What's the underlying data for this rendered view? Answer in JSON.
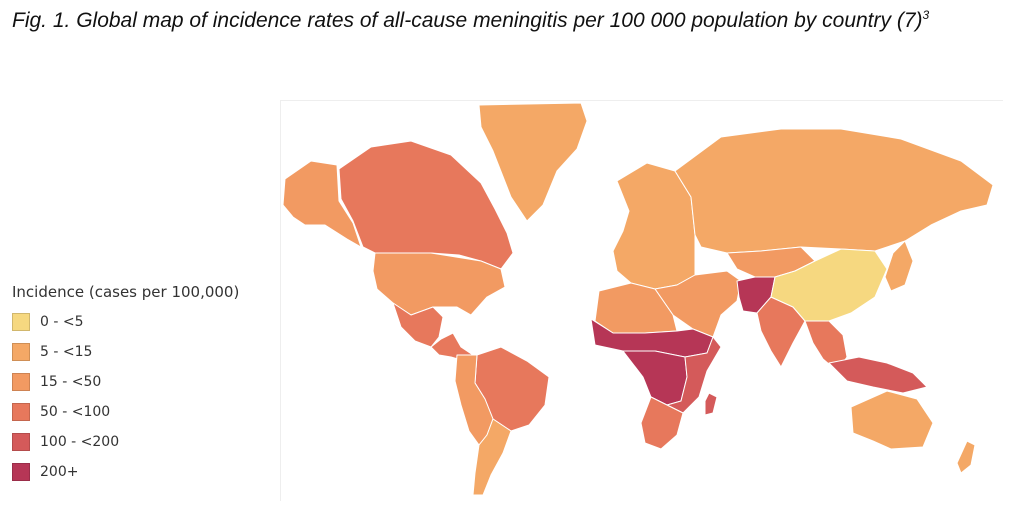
{
  "caption": {
    "text": "Fig. 1. Global map of incidence rates of all-cause meningitis per 100 000 population by country (7)",
    "footnote": "3"
  },
  "legend": {
    "title": "Incidence (cases per 100,000)",
    "items": [
      {
        "label": "0 - <5",
        "color": "#f6d880"
      },
      {
        "label": "5 - <15",
        "color": "#f4a866"
      },
      {
        "label": "15 - <50",
        "color": "#f29a62"
      },
      {
        "label": "50 - <100",
        "color": "#e7785c"
      },
      {
        "label": "100 - <200",
        "color": "#d45a5a"
      },
      {
        "label": "200+",
        "color": "#b63656"
      }
    ]
  },
  "map": {
    "ocean_color": "#ffffff",
    "border_color": "#ffffff",
    "regions": [
      {
        "name": "Greenland",
        "category": "5 - <15"
      },
      {
        "name": "Canada",
        "category": "50 - <100"
      },
      {
        "name": "Alaska",
        "category": "15 - <50"
      },
      {
        "name": "United States",
        "category": "15 - <50"
      },
      {
        "name": "Mexico",
        "category": "50 - <100"
      },
      {
        "name": "Central America",
        "category": "50 - <100"
      },
      {
        "name": "Brazil",
        "category": "50 - <100"
      },
      {
        "name": "Andes",
        "category": "15 - <50"
      },
      {
        "name": "Southern Cone",
        "category": "5 - <15"
      },
      {
        "name": "Europe",
        "category": "5 - <15"
      },
      {
        "name": "Russia",
        "category": "5 - <15"
      },
      {
        "name": "Central Asia",
        "category": "15 - <50"
      },
      {
        "name": "Middle East",
        "category": "15 - <50"
      },
      {
        "name": "Pakistan",
        "category": "200+"
      },
      {
        "name": "India",
        "category": "50 - <100"
      },
      {
        "name": "China",
        "category": "0 - <5"
      },
      {
        "name": "Southeast Asia",
        "category": "50 - <100"
      },
      {
        "name": "Indonesia",
        "category": "100 - <200"
      },
      {
        "name": "Japan",
        "category": "5 - <15"
      },
      {
        "name": "North Africa",
        "category": "15 - <50"
      },
      {
        "name": "Sahel",
        "category": "200+"
      },
      {
        "name": "Central Africa",
        "category": "200+"
      },
      {
        "name": "East Africa",
        "category": "100 - <200"
      },
      {
        "name": "Southern Africa",
        "category": "50 - <100"
      },
      {
        "name": "Madagascar",
        "category": "100 - <200"
      },
      {
        "name": "Australia",
        "category": "5 - <15"
      },
      {
        "name": "New Zealand",
        "category": "5 - <15"
      }
    ]
  }
}
